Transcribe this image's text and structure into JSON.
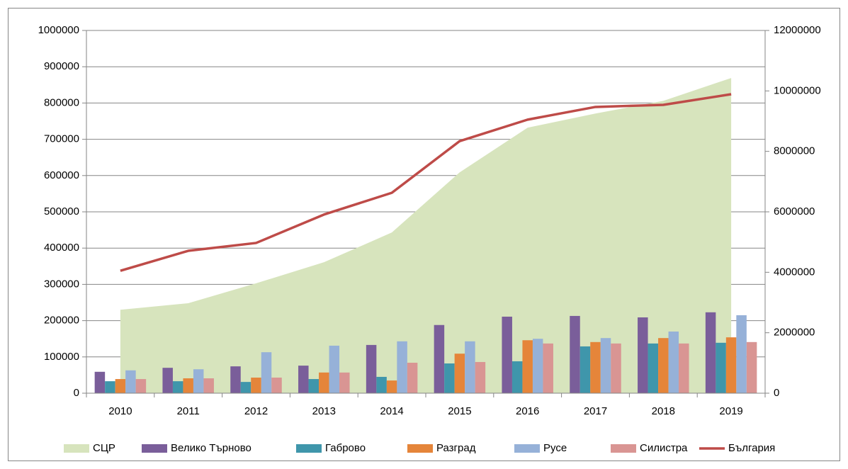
{
  "chart_data": {
    "type": "combo",
    "categories": [
      "2010",
      "2011",
      "2012",
      "2013",
      "2014",
      "2015",
      "2016",
      "2017",
      "2018",
      "2019"
    ],
    "ylim": [
      0,
      1000000
    ],
    "yticks": [
      0,
      100000,
      200000,
      300000,
      400000,
      500000,
      600000,
      700000,
      800000,
      900000,
      1000000
    ],
    "y2lim": [
      0,
      12000000
    ],
    "y2ticks": [
      0,
      2000000,
      4000000,
      6000000,
      8000000,
      10000000,
      12000000
    ],
    "grid": true,
    "legend": "bottom",
    "series": [
      {
        "name": "СЦР",
        "type": "area",
        "color": "#d7e4bd",
        "values": [
          230000,
          248000,
          303000,
          361000,
          443000,
          609000,
          732000,
          771000,
          806000,
          869000
        ]
      },
      {
        "name": "Велико Търново",
        "type": "bar",
        "color": "#7a5e9a",
        "values": [
          59000,
          70000,
          74000,
          76000,
          133000,
          188000,
          211000,
          213000,
          209000,
          223000
        ]
      },
      {
        "name": "Габрово",
        "type": "bar",
        "color": "#3f96ab",
        "values": [
          33000,
          33000,
          31000,
          39000,
          45000,
          82000,
          88000,
          129000,
          137000,
          139000
        ]
      },
      {
        "name": "Разград",
        "type": "bar",
        "color": "#e5853a",
        "values": [
          39000,
          41000,
          43000,
          57000,
          35000,
          109000,
          146000,
          141000,
          152000,
          154000
        ]
      },
      {
        "name": "Русе",
        "type": "bar",
        "color": "#96b1d8",
        "values": [
          63000,
          66000,
          113000,
          131000,
          143000,
          143000,
          150000,
          152000,
          170000,
          215000
        ]
      },
      {
        "name": "Силистра",
        "type": "bar",
        "color": "#d99593",
        "values": [
          39000,
          41000,
          43000,
          57000,
          84000,
          86000,
          137000,
          137000,
          137000,
          141000
        ]
      },
      {
        "name": "България",
        "type": "line",
        "axis": "y2",
        "color": "#be4b48",
        "values": [
          4050000,
          4710000,
          4970000,
          5910000,
          6630000,
          8340000,
          9050000,
          9470000,
          9540000,
          9890000
        ]
      }
    ]
  }
}
